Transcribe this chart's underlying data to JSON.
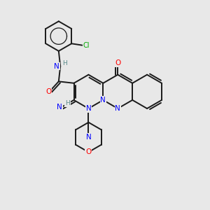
{
  "bg_color": "#e8e8e8",
  "bond_color": "#1a1a1a",
  "bond_width": 1.4,
  "atom_colors": {
    "N": "#0000ff",
    "O": "#ff0000",
    "Cl": "#00aa00",
    "H": "#5a8a8a",
    "C": "#1a1a1a"
  },
  "scale": 0.85
}
